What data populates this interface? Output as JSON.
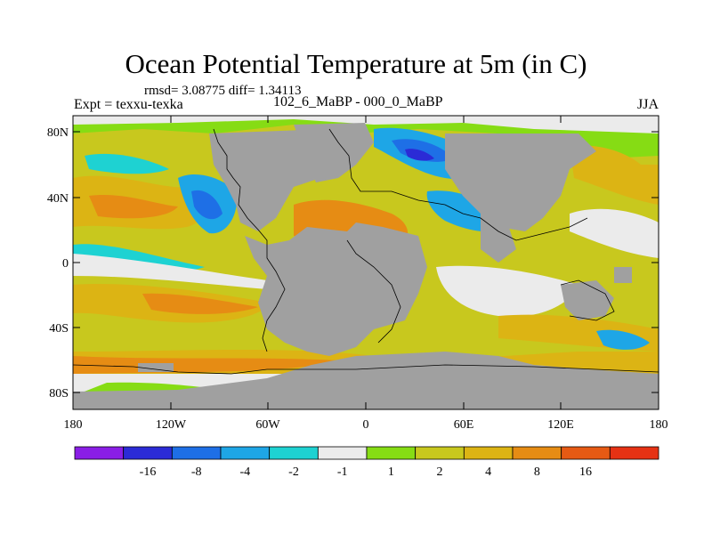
{
  "title": "Ocean Potential Temperature at 5m (in C)",
  "stats": "rmsd= 3.08775  diff= 1.34113",
  "experiment": "Expt = texxu-texka",
  "case_label": "102_6_MaBP - 000_0_MaBP",
  "season": "JJA",
  "axes": {
    "y_ticks": [
      "80N",
      "40N",
      "0",
      "40S",
      "80S"
    ],
    "x_ticks": [
      "180",
      "120W",
      "60W",
      "0",
      "60E",
      "120E",
      "180"
    ]
  },
  "colors": {
    "land": "#a0a0a0",
    "coast": "#000000",
    "frame": "#000000"
  },
  "colorbar": {
    "colors": [
      "#8a1ee6",
      "#2b2bd6",
      "#1e6fe6",
      "#1ea6e6",
      "#1ed2d2",
      "#ebebeb",
      "#86dc14",
      "#c8c81e",
      "#dcb414",
      "#e68c14",
      "#e65a14",
      "#e63214"
    ],
    "labels": [
      "-16",
      "-8",
      "-4",
      "-2",
      "-1",
      "1",
      "2",
      "4",
      "8",
      "16"
    ]
  },
  "chart_data": {
    "type": "heatmap",
    "title": "Ocean Potential Temperature at 5m (in C)",
    "xlabel": "",
    "ylabel": "",
    "xlim": [
      -180,
      180
    ],
    "ylim": [
      -90,
      90
    ],
    "units": "C",
    "contour_levels": [
      -16,
      -8,
      -4,
      -2,
      -1,
      1,
      2,
      4,
      8,
      16
    ],
    "rmsd": 3.08775,
    "diff": 1.34113
  }
}
